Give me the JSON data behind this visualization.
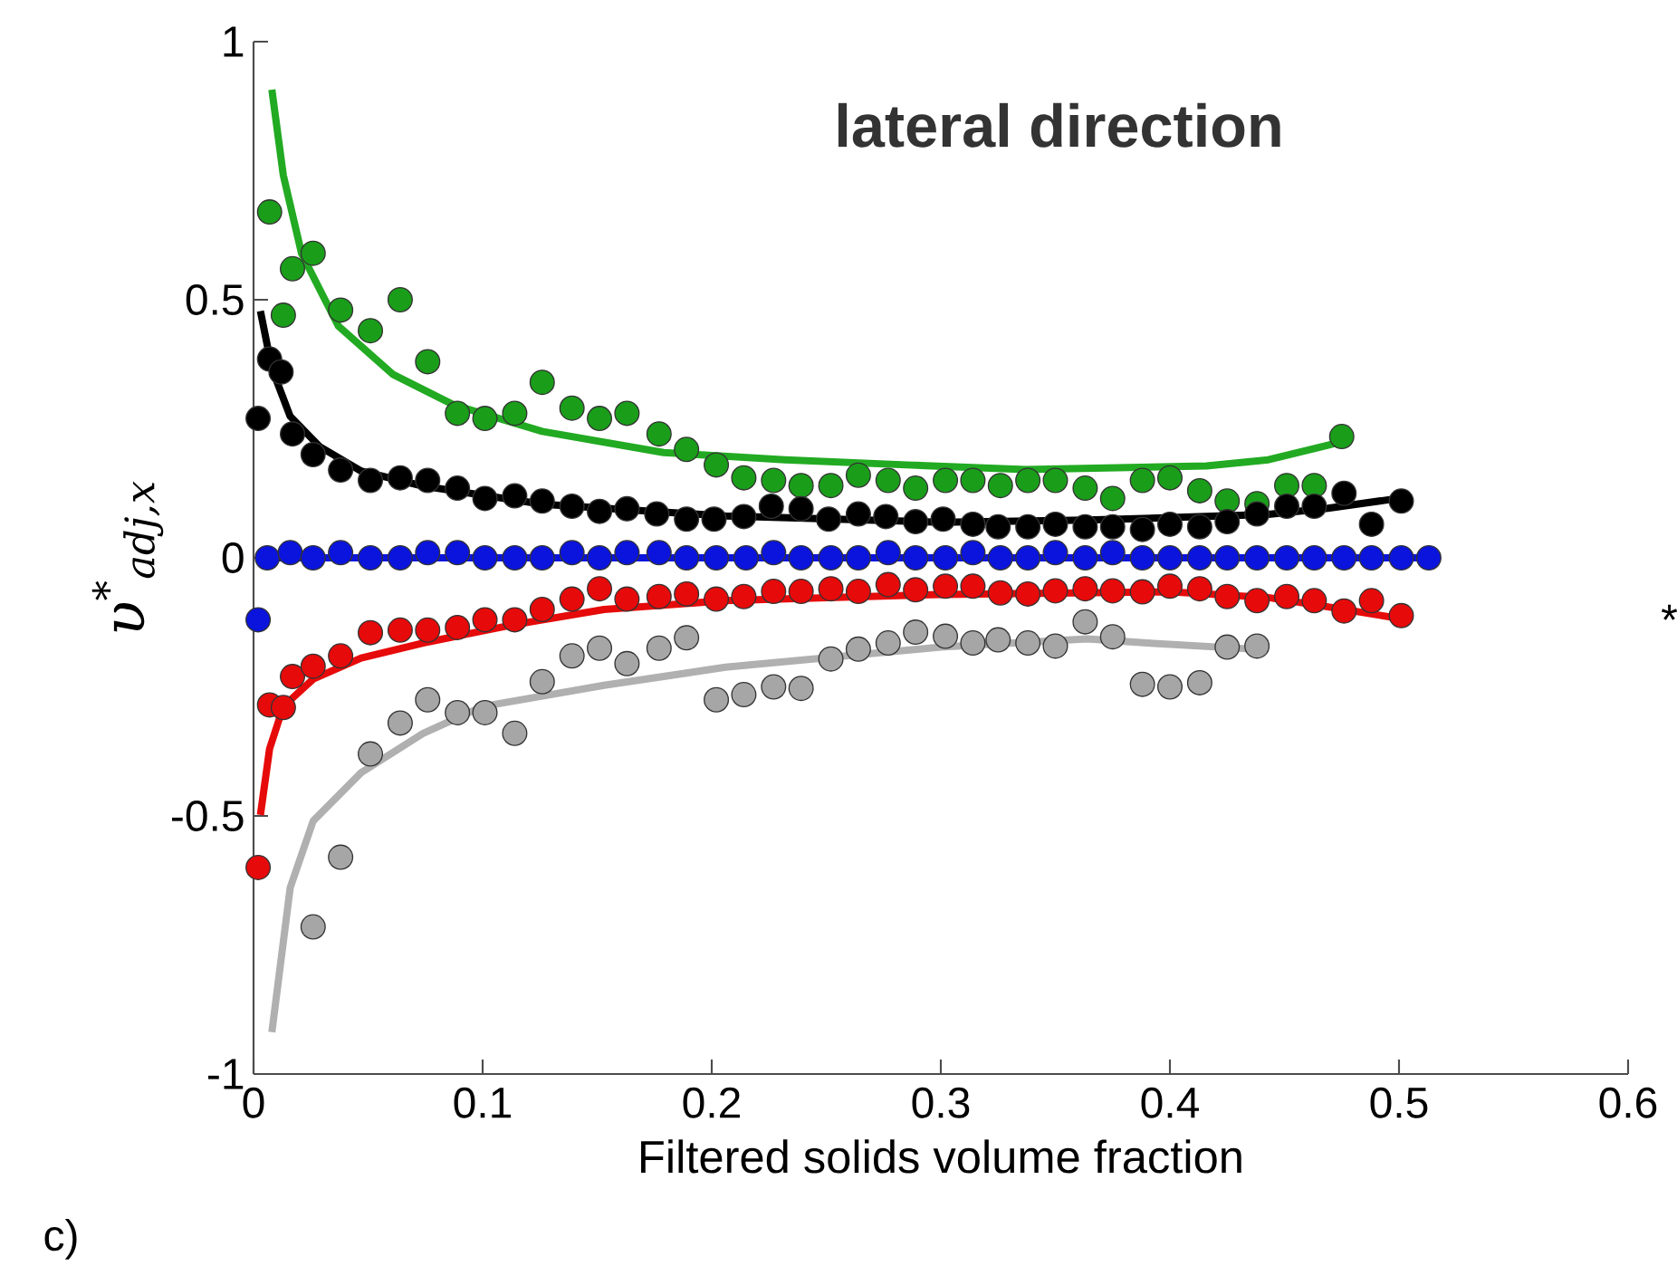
{
  "chart_data": {
    "type": "scatter",
    "title": "lateral direction",
    "xlabel": "Filtered solids volume fraction",
    "ylabel": "υ$^{*}$$_{adj,x}$",
    "xlim": [
      0,
      0.6
    ],
    "ylim": [
      -1,
      1
    ],
    "xticks": [
      0,
      0.1,
      0.2,
      0.3,
      0.4,
      0.5,
      0.6
    ],
    "yticks": [
      -1,
      -0.5,
      0,
      0.5,
      1
    ],
    "annotations": [
      "c)",
      "*"
    ],
    "series": [
      {
        "marker": "circle",
        "color": "#1a9e1a",
        "x": [
          0.007,
          0.013,
          0.017,
          0.026,
          0.038,
          0.051,
          0.064,
          0.076,
          0.089,
          0.101,
          0.114,
          0.126,
          0.139,
          0.151,
          0.163,
          0.177,
          0.189,
          0.202,
          0.214,
          0.227,
          0.239,
          0.252,
          0.264,
          0.277,
          0.289,
          0.302,
          0.314,
          0.326,
          0.338,
          0.35,
          0.363,
          0.375,
          0.388,
          0.4,
          0.413,
          0.425,
          0.438,
          0.451,
          0.463,
          0.475
        ],
        "values": [
          0.67,
          0.47,
          0.56,
          0.59,
          0.48,
          0.44,
          0.5,
          0.38,
          0.28,
          0.27,
          0.28,
          0.34,
          0.29,
          0.27,
          0.28,
          0.24,
          0.21,
          0.18,
          0.155,
          0.15,
          0.14,
          0.14,
          0.16,
          0.15,
          0.135,
          0.15,
          0.15,
          0.14,
          0.15,
          0.15,
          0.135,
          0.115,
          0.15,
          0.155,
          0.13,
          0.11,
          0.105,
          0.14,
          0.14,
          0.235
        ]
      },
      {
        "marker": "circle",
        "color": "#000000",
        "x": [
          0.002,
          0.007,
          0.012,
          0.017,
          0.026,
          0.038,
          0.051,
          0.064,
          0.076,
          0.089,
          0.101,
          0.114,
          0.126,
          0.139,
          0.151,
          0.163,
          0.176,
          0.189,
          0.201,
          0.214,
          0.226,
          0.239,
          0.251,
          0.264,
          0.276,
          0.289,
          0.301,
          0.314,
          0.325,
          0.338,
          0.35,
          0.363,
          0.375,
          0.388,
          0.4,
          0.413,
          0.425,
          0.438,
          0.451,
          0.463,
          0.476,
          0.488,
          0.501
        ],
        "values": [
          0.27,
          0.385,
          0.36,
          0.24,
          0.2,
          0.17,
          0.15,
          0.155,
          0.15,
          0.135,
          0.115,
          0.12,
          0.11,
          0.1,
          0.09,
          0.095,
          0.085,
          0.075,
          0.075,
          0.08,
          0.1,
          0.095,
          0.075,
          0.085,
          0.08,
          0.07,
          0.075,
          0.065,
          0.06,
          0.06,
          0.065,
          0.06,
          0.06,
          0.055,
          0.065,
          0.06,
          0.07,
          0.085,
          0.1,
          0.1,
          0.125,
          0.065,
          0.11
        ]
      },
      {
        "marker": "circle",
        "color": "#0a14dc",
        "x": [
          0.002,
          0.006,
          0.016,
          0.026,
          0.038,
          0.051,
          0.064,
          0.076,
          0.089,
          0.101,
          0.114,
          0.126,
          0.139,
          0.151,
          0.163,
          0.177,
          0.189,
          0.202,
          0.215,
          0.227,
          0.239,
          0.252,
          0.264,
          0.277,
          0.289,
          0.302,
          0.314,
          0.326,
          0.338,
          0.35,
          0.363,
          0.375,
          0.388,
          0.4,
          0.413,
          0.425,
          0.438,
          0.451,
          0.463,
          0.476,
          0.488,
          0.501,
          0.513
        ],
        "values": [
          -0.12,
          0,
          0.01,
          0,
          0.01,
          0,
          0,
          0.01,
          0.01,
          0,
          0,
          0,
          0.01,
          0,
          0.01,
          0.01,
          0,
          0,
          0,
          0.01,
          0,
          0,
          0,
          0.01,
          0,
          0,
          0.01,
          0,
          0,
          0.01,
          0,
          0.01,
          0,
          0,
          0,
          0,
          0,
          0,
          0,
          0,
          0,
          0,
          0
        ]
      },
      {
        "marker": "circle",
        "color": "#e60a0a",
        "x": [
          0.002,
          0.007,
          0.013,
          0.017,
          0.026,
          0.038,
          0.051,
          0.064,
          0.076,
          0.089,
          0.101,
          0.114,
          0.126,
          0.139,
          0.151,
          0.163,
          0.177,
          0.189,
          0.202,
          0.214,
          0.227,
          0.239,
          0.252,
          0.264,
          0.277,
          0.289,
          0.302,
          0.314,
          0.326,
          0.338,
          0.35,
          0.363,
          0.375,
          0.388,
          0.4,
          0.413,
          0.425,
          0.438,
          0.451,
          0.463,
          0.476,
          0.488,
          0.501
        ],
        "values": [
          -0.6,
          -0.285,
          -0.29,
          -0.23,
          -0.21,
          -0.19,
          -0.145,
          -0.14,
          -0.14,
          -0.135,
          -0.12,
          -0.12,
          -0.1,
          -0.08,
          -0.06,
          -0.08,
          -0.075,
          -0.07,
          -0.08,
          -0.075,
          -0.065,
          -0.065,
          -0.06,
          -0.065,
          -0.052,
          -0.062,
          -0.055,
          -0.055,
          -0.068,
          -0.07,
          -0.064,
          -0.06,
          -0.064,
          -0.066,
          -0.055,
          -0.06,
          -0.075,
          -0.083,
          -0.075,
          -0.083,
          -0.103,
          -0.083,
          -0.112
        ]
      },
      {
        "marker": "circle",
        "color": "#a6a6a6",
        "x": [
          0.026,
          0.038,
          0.051,
          0.064,
          0.076,
          0.089,
          0.101,
          0.114,
          0.126,
          0.139,
          0.151,
          0.163,
          0.177,
          0.189,
          0.202,
          0.214,
          0.227,
          0.239,
          0.252,
          0.264,
          0.277,
          0.289,
          0.302,
          0.314,
          0.325,
          0.338,
          0.35,
          0.363,
          0.375,
          0.388,
          0.4,
          0.413,
          0.425,
          0.438
        ],
        "values": [
          -0.715,
          -0.58,
          -0.38,
          -0.32,
          -0.275,
          -0.3,
          -0.3,
          -0.34,
          -0.24,
          -0.19,
          -0.175,
          -0.205,
          -0.175,
          -0.155,
          -0.275,
          -0.265,
          -0.25,
          -0.253,
          -0.196,
          -0.177,
          -0.165,
          -0.144,
          -0.152,
          -0.165,
          -0.159,
          -0.165,
          -0.171,
          -0.124,
          -0.153,
          -0.245,
          -0.25,
          -0.242,
          -0.173,
          -0.171
        ]
      },
      {
        "type": "line",
        "marker": "none",
        "color": "#22aa22",
        "x": [
          0.008,
          0.013,
          0.021,
          0.037,
          0.061,
          0.087,
          0.126,
          0.179,
          0.232,
          0.285,
          0.337,
          0.416,
          0.443,
          0.469,
          0.475
        ],
        "values": [
          0.907,
          0.741,
          0.589,
          0.449,
          0.355,
          0.297,
          0.245,
          0.204,
          0.19,
          0.18,
          0.171,
          0.178,
          0.19,
          0.218,
          0.225
        ]
      },
      {
        "type": "line",
        "marker": "none",
        "color": "#000000",
        "x": [
          0.003,
          0.008,
          0.016,
          0.029,
          0.047,
          0.074,
          0.126,
          0.206,
          0.3,
          0.364,
          0.443,
          0.469,
          0.501
        ],
        "values": [
          0.478,
          0.367,
          0.274,
          0.215,
          0.168,
          0.139,
          0.104,
          0.081,
          0.069,
          0.073,
          0.084,
          0.096,
          0.116
        ]
      },
      {
        "type": "line",
        "marker": "none",
        "color": "#0a14dc",
        "x": [
          0.003,
          0.513
        ],
        "values": [
          0,
          0
        ]
      },
      {
        "type": "line",
        "marker": "none",
        "color": "#e60a0a",
        "x": [
          0.003,
          0.007,
          0.013,
          0.026,
          0.047,
          0.074,
          0.113,
          0.153,
          0.206,
          0.3,
          0.4,
          0.443,
          0.469,
          0.501
        ],
        "values": [
          -0.498,
          -0.37,
          -0.288,
          -0.235,
          -0.194,
          -0.165,
          -0.13,
          -0.1,
          -0.083,
          -0.071,
          -0.066,
          -0.077,
          -0.095,
          -0.118
        ]
      },
      {
        "type": "line",
        "marker": "none",
        "color": "#b0b0b0",
        "x": [
          0.008,
          0.016,
          0.026,
          0.047,
          0.074,
          0.1,
          0.153,
          0.206,
          0.3,
          0.364,
          0.39,
          0.437
        ],
        "values": [
          -0.919,
          -0.639,
          -0.51,
          -0.416,
          -0.34,
          -0.288,
          -0.247,
          -0.212,
          -0.173,
          -0.157,
          -0.165,
          -0.177
        ]
      }
    ]
  }
}
